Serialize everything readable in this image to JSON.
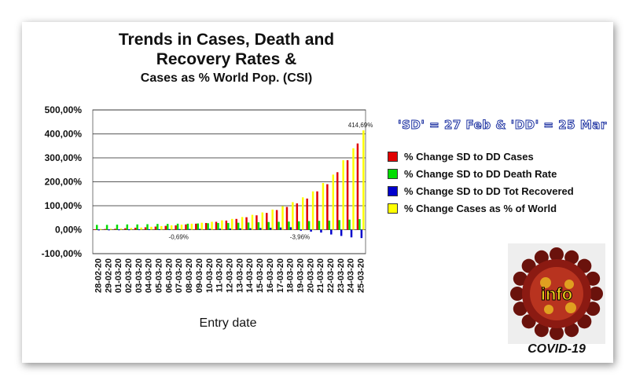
{
  "chart_data": {
    "type": "bar",
    "title_line1": "Trends in Cases, Death and",
    "title_line2": "Recovery Rates &",
    "subtitle": "Cases as % World Pop. (CSI)",
    "xlabel": "Entry date",
    "ylabel": "",
    "ylim": [
      -100,
      500
    ],
    "yticks": [
      "500,00%",
      "400,00%",
      "300,00%",
      "200,00%",
      "100,00%",
      "0,00%",
      "-100,00%"
    ],
    "ytick_values": [
      500,
      400,
      300,
      200,
      100,
      0,
      -100
    ],
    "grid": true,
    "legend_position": "right",
    "categories": [
      "28-02-20",
      "29-02-20",
      "01-03-20",
      "02-03-20",
      "03-03-20",
      "04-03-20",
      "05-03-20",
      "06-03-20",
      "07-03-20",
      "08-03-20",
      "09-03-20",
      "10-03-20",
      "11-03-20",
      "12-03-20",
      "13-03-20",
      "14-03-20",
      "15-03-20",
      "16-03-20",
      "17-03-20",
      "18-03-20",
      "19-03-20",
      "20-03-20",
      "21-03-20",
      "22-03-20",
      "23-03-20",
      "24-03-20",
      "25-03-20"
    ],
    "series": [
      {
        "name": "% Change SD to DD Cases",
        "color": "#e00000",
        "values": [
          2,
          3,
          4,
          6,
          8,
          10,
          13,
          16,
          18,
          22,
          25,
          28,
          33,
          38,
          45,
          52,
          60,
          70,
          82,
          95,
          110,
          130,
          160,
          190,
          240,
          290,
          360
        ]
      },
      {
        "name": "% Change SD to DD Death Rate",
        "color": "#00dd00",
        "values": [
          20,
          20,
          21,
          22,
          22,
          23,
          24,
          24,
          25,
          25,
          26,
          27,
          28,
          28,
          29,
          30,
          31,
          32,
          33,
          34,
          35,
          36,
          37,
          38,
          40,
          42,
          44
        ]
      },
      {
        "name": "% Change SD to DD Tot Recovered",
        "color": "#0000cc",
        "values": [
          0.5,
          0.7,
          1,
          1.2,
          1.5,
          1.8,
          2,
          2.3,
          2.6,
          3,
          3.4,
          3.8,
          4.3,
          4.8,
          5.5,
          6,
          7,
          8,
          9,
          10,
          -4,
          -8,
          -12,
          -20,
          -26,
          -32,
          -35
        ]
      },
      {
        "name": "% Change Cases as % of World",
        "color": "#ffff00",
        "values": [
          3,
          4,
          5,
          7,
          9,
          12,
          15,
          18,
          21,
          25,
          29,
          33,
          39,
          45,
          53,
          62,
          72,
          84,
          98,
          115,
          135,
          160,
          195,
          230,
          290,
          340,
          414.69
        ]
      }
    ],
    "annotations": [
      "414,69%",
      "-0,69%",
      "-3,96%"
    ]
  },
  "legend_header": "'SD' = 27 Feb & 'DD' = 25 Mar",
  "logo_text": "info",
  "caption": "COVID-19"
}
